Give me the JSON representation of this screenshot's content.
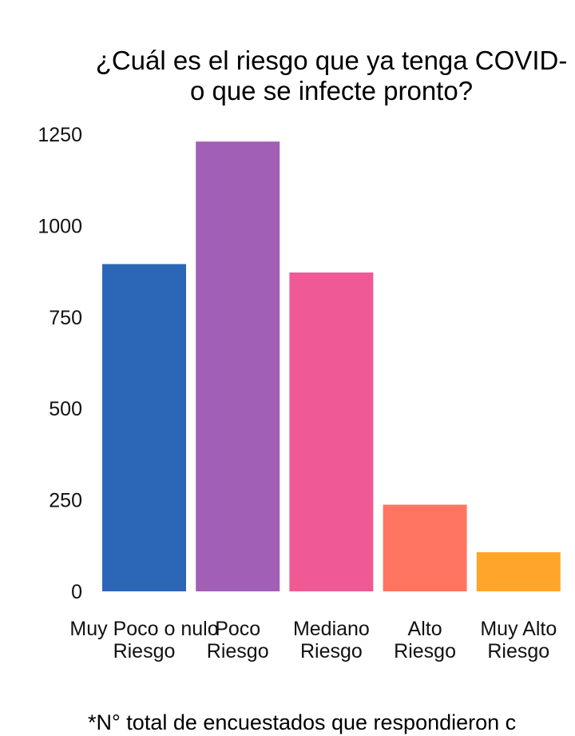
{
  "chart_data": {
    "type": "bar",
    "title": [
      "¿Cuál es el riesgo que ya tenga COVID-",
      "o que se infecte pronto?"
    ],
    "categories": [
      [
        "Muy Poco o nulo",
        "Riesgo"
      ],
      [
        "Poco",
        "Riesgo"
      ],
      [
        "Mediano",
        "Riesgo"
      ],
      [
        "Alto",
        "Riesgo"
      ],
      [
        "Muy Alto",
        "Riesgo"
      ]
    ],
    "values": [
      895,
      1230,
      872,
      237,
      107
    ],
    "colors": [
      "#2b67b6",
      "#a25fb6",
      "#f05a94",
      "#ff7562",
      "#ffa62a"
    ],
    "ylim": [
      0,
      1250
    ],
    "yticks": [
      "0",
      "250",
      "500",
      "750",
      "1000",
      "1250"
    ],
    "ytick_values": [
      0,
      250,
      500,
      750,
      1000,
      1250
    ],
    "grid": false,
    "legend": "none",
    "xlabel": "",
    "ylabel": ""
  },
  "footnote": "*N° total de encuestados que respondieron c"
}
